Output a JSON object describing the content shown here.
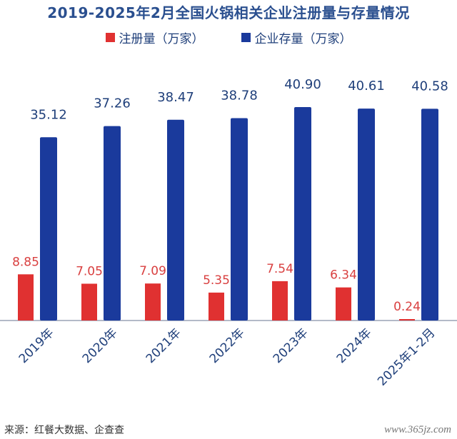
{
  "chart_data": {
    "type": "bar",
    "title": "2019-2025年2月全国火锅相关企业注册量与存量情况",
    "categories": [
      "2019年",
      "2020年",
      "2021年",
      "2022年",
      "2023年",
      "2024年",
      "2025年1-2月"
    ],
    "series": [
      {
        "name": "注册量（万家）",
        "color": "#e03131",
        "values": [
          8.85,
          7.05,
          7.09,
          5.35,
          7.54,
          6.34,
          0.24
        ],
        "labels": [
          "8.85",
          "7.05",
          "7.09",
          "5.35",
          "7.54",
          "6.34",
          "0.24"
        ]
      },
      {
        "name": "企业存量（万家）",
        "color": "#1a3a9c",
        "values": [
          35.12,
          37.26,
          38.47,
          38.78,
          40.9,
          40.61,
          40.58
        ],
        "labels": [
          "35.12",
          "37.26",
          "38.47",
          "38.78",
          "40.90",
          "40.61",
          "40.58"
        ]
      }
    ],
    "xlabel": "",
    "ylabel": "",
    "ylim": [
      0,
      45
    ],
    "grid": false,
    "legend": "top"
  },
  "source": "来源：红餐大数据、企查查",
  "watermark": "www.365jz.com",
  "colors": {
    "label_red": "#d94040",
    "label_blue": "#1f3f7a",
    "axis": "#9aa3b5",
    "title": "#2a4f8f"
  }
}
